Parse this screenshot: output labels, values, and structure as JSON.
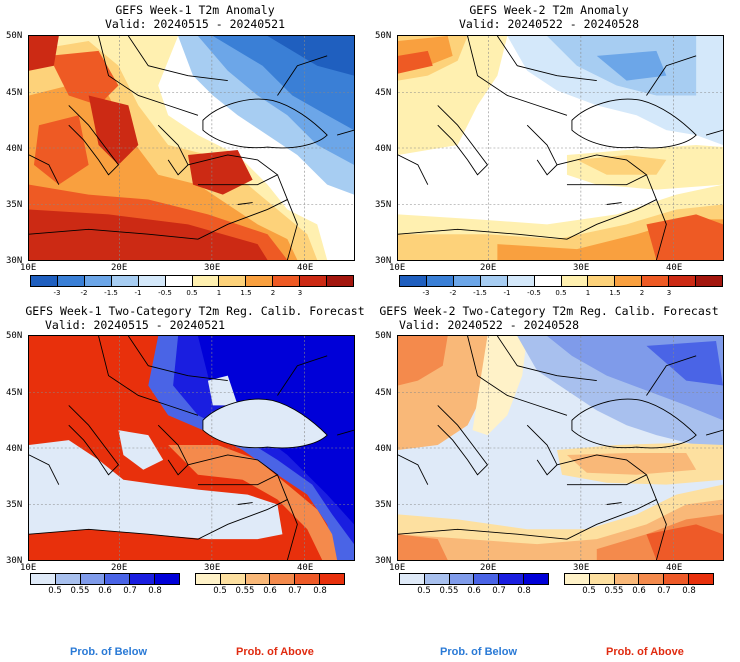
{
  "panels": [
    {
      "title": "GEFS Week-1 T2m Anomaly",
      "valid": "Valid: 20240515 - 20240521"
    },
    {
      "title": "GEFS Week-2 T2m Anomaly",
      "valid": "Valid: 20240522 - 20240528"
    },
    {
      "title": "GEFS Week-1 Two-Category T2m Reg. Calib. Forecast",
      "valid": "Valid: 20240515 - 20240521"
    },
    {
      "title": "GEFS Week-2 Two-Category T2m Reg. Calib. Forecast",
      "valid": "Valid: 20240522 - 20240528"
    }
  ],
  "lat_labels": [
    "50N",
    "45N",
    "40N",
    "35N",
    "30N"
  ],
  "lon_labels": [
    "10E",
    "20E",
    "30E",
    "40E"
  ],
  "anomaly_colorbar": {
    "labels": [
      "-3",
      "-2",
      "-1.5",
      "-1",
      "-0.5",
      "0.5",
      "1",
      "1.5",
      "2",
      "3"
    ],
    "colors": [
      "#1f5fbf",
      "#3a7fd6",
      "#6ca6e8",
      "#a7cdf2",
      "#d4e8fa",
      "#ffffff",
      "#fff0b0",
      "#fdd27a",
      "#f9a03f",
      "#ee5a24",
      "#cc2a14",
      "#a3160e"
    ]
  },
  "prob_below": {
    "labels": [
      "0.5",
      "0.55",
      "0.6",
      "0.7",
      "0.8"
    ],
    "colors": [
      "#dfeaf8",
      "#a8c0ee",
      "#7f9bea",
      "#4a64e6",
      "#1a1ee0",
      "#0000d8"
    ],
    "caption": "Prob. of Below",
    "caption_color": "#2a7ad6"
  },
  "prob_above": {
    "labels": [
      "0.5",
      "0.55",
      "0.6",
      "0.7",
      "0.8"
    ],
    "colors": [
      "#fff2c8",
      "#fde0a0",
      "#f9b878",
      "#f48a4c",
      "#ee5a28",
      "#e8300c"
    ],
    "caption": "Prob. of Above",
    "caption_color": "#e02b10"
  }
}
